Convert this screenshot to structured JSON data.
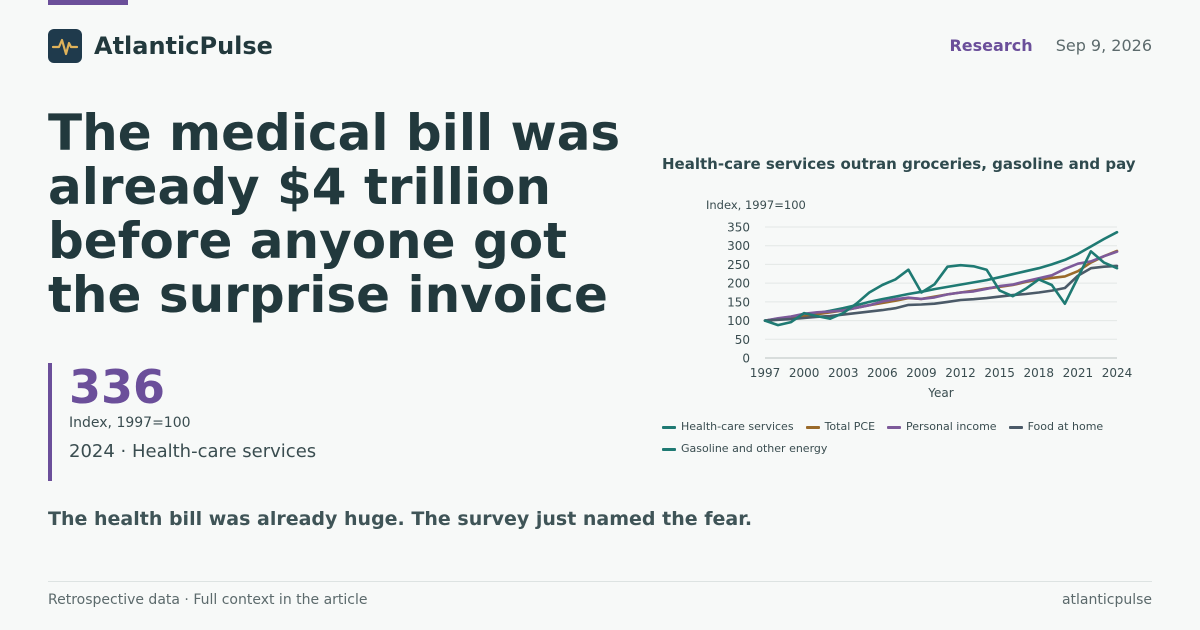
{
  "brand": {
    "name": "AtlanticPulse",
    "logo_icon": "pulse-icon"
  },
  "header": {
    "section": "Research",
    "date": "Sep 9, 2026"
  },
  "headline": "The medical bill was already $4 trillion before anyone got the surprise invoice",
  "stat": {
    "value": "336",
    "unit": "Index, 1997=100",
    "context": "2024 · Health-care services"
  },
  "dek": "The health bill was already huge. The survey just named the fear.",
  "footer": {
    "note": "Retrospective data · Full context in the article",
    "site": "atlanticpulse"
  },
  "colors": {
    "accent": "#6b4f9a",
    "text": "#22393d",
    "background": "#f7f9f8"
  },
  "chart_data": {
    "type": "line",
    "title": "Health-care services outran groceries, gasoline and pay",
    "ylabel": "Index, 1997=100",
    "xlabel": "Year",
    "ylim": [
      0,
      350
    ],
    "yticks": [
      0,
      50,
      100,
      150,
      200,
      250,
      300,
      350
    ],
    "xlim": [
      1997,
      2024
    ],
    "xticks": [
      1997,
      2000,
      2003,
      2006,
      2009,
      2012,
      2015,
      2018,
      2021,
      2024
    ],
    "grid": true,
    "legend_position": "bottom",
    "x": [
      1997,
      1998,
      1999,
      2000,
      2001,
      2002,
      2003,
      2004,
      2005,
      2006,
      2007,
      2008,
      2009,
      2010,
      2011,
      2012,
      2013,
      2014,
      2015,
      2016,
      2017,
      2018,
      2019,
      2020,
      2021,
      2022,
      2023,
      2024
    ],
    "series": [
      {
        "name": "Health-care services",
        "color": "#1f7a73",
        "values": [
          100,
          105,
          110,
          115,
          120,
          126,
          133,
          141,
          150,
          157,
          164,
          171,
          177,
          184,
          190,
          196,
          202,
          208,
          216,
          224,
          232,
          240,
          250,
          262,
          278,
          298,
          318,
          336
        ]
      },
      {
        "name": "Total PCE",
        "color": "#9a6a2a",
        "values": [
          100,
          103,
          107,
          112,
          117,
          122,
          127,
          134,
          141,
          147,
          153,
          160,
          158,
          164,
          170,
          175,
          180,
          186,
          190,
          195,
          203,
          210,
          214,
          218,
          232,
          255,
          272,
          286
        ]
      },
      {
        "name": "Personal income",
        "color": "#7d5a9a",
        "values": [
          100,
          106,
          111,
          118,
          122,
          124,
          127,
          134,
          141,
          151,
          157,
          161,
          158,
          162,
          170,
          175,
          178,
          185,
          192,
          196,
          205,
          213,
          221,
          238,
          252,
          258,
          272,
          284
        ]
      },
      {
        "name": "Food at home",
        "color": "#4b5a68",
        "values": [
          100,
          102,
          104,
          107,
          110,
          112,
          116,
          120,
          124,
          128,
          133,
          142,
          143,
          145,
          150,
          155,
          157,
          160,
          164,
          168,
          171,
          175,
          180,
          187,
          220,
          240,
          244,
          246
        ]
      },
      {
        "name": "Gasoline and other energy",
        "color": "#1f7a73",
        "values": [
          100,
          88,
          96,
          120,
          112,
          105,
          120,
          145,
          175,
          195,
          210,
          236,
          175,
          197,
          244,
          248,
          245,
          236,
          180,
          165,
          185,
          210,
          195,
          145,
          215,
          285,
          255,
          240
        ]
      }
    ]
  }
}
